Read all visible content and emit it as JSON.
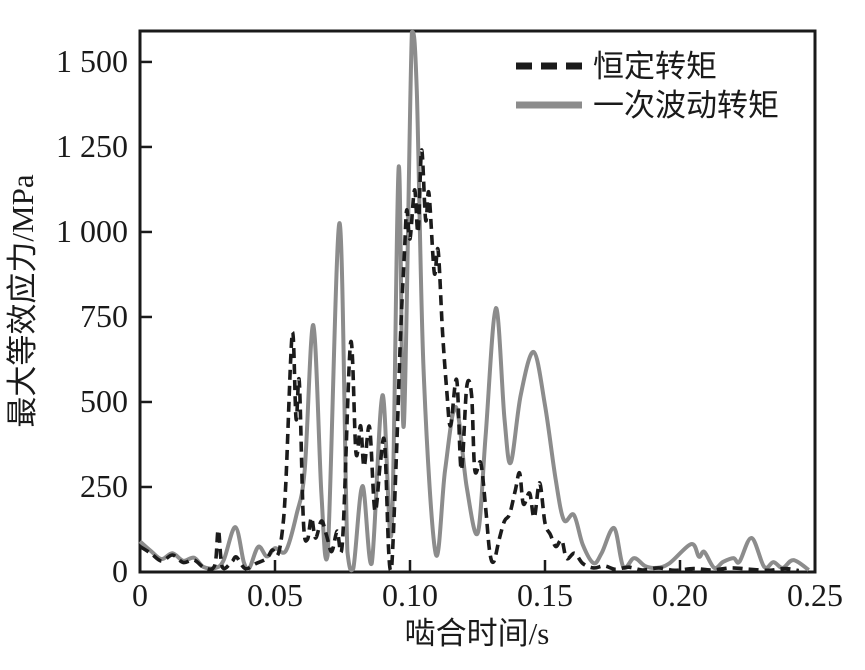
{
  "chart_data": {
    "type": "line",
    "title": "",
    "xlabel": "啮合时间/s",
    "ylabel": "最大等效应力/MPa",
    "xlim": [
      0,
      0.25
    ],
    "ylim": [
      0,
      1591
    ],
    "grid": false,
    "legend_position": "top-right",
    "x_ticks": [
      0,
      0.05,
      0.1,
      0.15,
      0.2,
      0.25
    ],
    "x_tick_labels": [
      "0",
      "0.05",
      "0.10",
      "0.15",
      "0.20",
      "0.25"
    ],
    "y_ticks": [
      0,
      250,
      500,
      750,
      1000,
      1250,
      1500
    ],
    "y_tick_labels": [
      "0",
      "250",
      "500",
      "750",
      "1 000",
      "1 250",
      "1 500"
    ],
    "colors": {
      "axis": "#1a1a1a",
      "constant_torque": "#1b1b1b",
      "fluctuating_torque": "#8c8c8c",
      "background": "#ffffff"
    },
    "series": [
      {
        "name": "恒定转矩",
        "style": "dashed",
        "color": "#1b1b1b",
        "points": [
          [
            0,
            75
          ],
          [
            0.004,
            55
          ],
          [
            0.008,
            32
          ],
          [
            0.012,
            50
          ],
          [
            0.016,
            28
          ],
          [
            0.02,
            35
          ],
          [
            0.024,
            12
          ],
          [
            0.0277,
            20
          ],
          [
            0.029,
            124
          ],
          [
            0.0305,
            15
          ],
          [
            0.034,
            30
          ],
          [
            0.0357,
            44
          ],
          [
            0.039,
            10
          ],
          [
            0.043,
            25
          ],
          [
            0.047,
            40
          ],
          [
            0.049,
            65
          ],
          [
            0.051,
            50
          ],
          [
            0.0527,
            120
          ],
          [
            0.054,
            260
          ],
          [
            0.0564,
            703
          ],
          [
            0.0578,
            450
          ],
          [
            0.059,
            560
          ],
          [
            0.0605,
            150
          ],
          [
            0.062,
            95
          ],
          [
            0.0635,
            160
          ],
          [
            0.065,
            100
          ],
          [
            0.0672,
            150
          ],
          [
            0.069,
            110
          ],
          [
            0.071,
            60
          ],
          [
            0.073,
            120
          ],
          [
            0.075,
            90
          ],
          [
            0.078,
            674
          ],
          [
            0.08,
            350
          ],
          [
            0.0817,
            430
          ],
          [
            0.083,
            310
          ],
          [
            0.085,
            427
          ],
          [
            0.087,
            180
          ],
          [
            0.089,
            320
          ],
          [
            0.0906,
            380
          ],
          [
            0.0921,
            60
          ],
          [
            0.0932,
            10
          ],
          [
            0.095,
            350
          ],
          [
            0.0965,
            700
          ],
          [
            0.098,
            950
          ],
          [
            0.0988,
            1065
          ],
          [
            0.1,
            980
          ],
          [
            0.1017,
            1124
          ],
          [
            0.103,
            1000
          ],
          [
            0.1043,
            1241
          ],
          [
            0.1058,
            1035
          ],
          [
            0.107,
            1115
          ],
          [
            0.109,
            880
          ],
          [
            0.1104,
            947
          ],
          [
            0.112,
            712
          ],
          [
            0.1136,
            535
          ],
          [
            0.115,
            430
          ],
          [
            0.1173,
            565
          ],
          [
            0.119,
            300
          ],
          [
            0.121,
            544
          ],
          [
            0.1228,
            520
          ],
          [
            0.124,
            300
          ],
          [
            0.1262,
            321
          ],
          [
            0.128,
            190
          ],
          [
            0.1295,
            60
          ],
          [
            0.131,
            30
          ],
          [
            0.133,
            95
          ],
          [
            0.135,
            150
          ],
          [
            0.1369,
            170
          ],
          [
            0.139,
            240
          ],
          [
            0.1406,
            291
          ],
          [
            0.142,
            200
          ],
          [
            0.1443,
            232
          ],
          [
            0.146,
            160
          ],
          [
            0.148,
            262
          ],
          [
            0.15,
            144
          ],
          [
            0.152,
            110
          ],
          [
            0.154,
            75
          ],
          [
            0.1562,
            94
          ],
          [
            0.158,
            40
          ],
          [
            0.161,
            55
          ],
          [
            0.164,
            25
          ],
          [
            0.168,
            12
          ],
          [
            0.172,
            18
          ],
          [
            0.176,
            8
          ],
          [
            0.181,
            14
          ],
          [
            0.186,
            6
          ],
          [
            0.192,
            12
          ],
          [
            0.198,
            5
          ],
          [
            0.205,
            10
          ],
          [
            0.212,
            6
          ],
          [
            0.219,
            12
          ],
          [
            0.226,
            8
          ],
          [
            0.233,
            5
          ],
          [
            0.239,
            10
          ],
          [
            0.244,
            4
          ]
        ]
      },
      {
        "name": "一次波动转矩",
        "style": "solid",
        "color": "#8c8c8c",
        "points": [
          [
            0,
            90
          ],
          [
            0.004,
            62
          ],
          [
            0.008,
            38
          ],
          [
            0.012,
            55
          ],
          [
            0.016,
            33
          ],
          [
            0.02,
            42
          ],
          [
            0.0235,
            15
          ],
          [
            0.028,
            12
          ],
          [
            0.031,
            35
          ],
          [
            0.0353,
            132
          ],
          [
            0.0385,
            28
          ],
          [
            0.0405,
            12
          ],
          [
            0.0438,
            74
          ],
          [
            0.047,
            46
          ],
          [
            0.05,
            70
          ],
          [
            0.054,
            62
          ],
          [
            0.058,
            170
          ],
          [
            0.061,
            300
          ],
          [
            0.0642,
            726
          ],
          [
            0.0672,
            230
          ],
          [
            0.0695,
            48
          ],
          [
            0.0739,
            1026
          ],
          [
            0.0768,
            60
          ],
          [
            0.079,
            10
          ],
          [
            0.0824,
            253
          ],
          [
            0.0858,
            25
          ],
          [
            0.0898,
            520
          ],
          [
            0.0932,
            120
          ],
          [
            0.0958,
            1191
          ],
          [
            0.0977,
            430
          ],
          [
            0.1007,
            1588
          ],
          [
            0.1025,
            1415
          ],
          [
            0.105,
            600
          ],
          [
            0.1095,
            55
          ],
          [
            0.113,
            300
          ],
          [
            0.117,
            485
          ],
          [
            0.121,
            250
          ],
          [
            0.1251,
            115
          ],
          [
            0.128,
            400
          ],
          [
            0.1318,
            776
          ],
          [
            0.135,
            450
          ],
          [
            0.1373,
            321
          ],
          [
            0.141,
            520
          ],
          [
            0.1458,
            647
          ],
          [
            0.15,
            490
          ],
          [
            0.154,
            270
          ],
          [
            0.157,
            153
          ],
          [
            0.1607,
            168
          ],
          [
            0.164,
            80
          ],
          [
            0.168,
            26
          ],
          [
            0.171,
            56
          ],
          [
            0.1756,
            129
          ],
          [
            0.179,
            15
          ],
          [
            0.183,
            41
          ],
          [
            0.187,
            18
          ],
          [
            0.191,
            12
          ],
          [
            0.196,
            25
          ],
          [
            0.2042,
            82
          ],
          [
            0.207,
            45
          ],
          [
            0.209,
            59
          ],
          [
            0.2127,
            12
          ],
          [
            0.216,
            30
          ],
          [
            0.2198,
            41
          ],
          [
            0.222,
            30
          ],
          [
            0.2265,
            100
          ],
          [
            0.2312,
            15
          ],
          [
            0.2346,
            29
          ],
          [
            0.238,
            12
          ],
          [
            0.242,
            35
          ],
          [
            0.2477,
            6
          ]
        ]
      }
    ],
    "legend": {
      "items": [
        {
          "label": "恒定转矩"
        },
        {
          "label": "一次波动转矩"
        }
      ]
    }
  }
}
